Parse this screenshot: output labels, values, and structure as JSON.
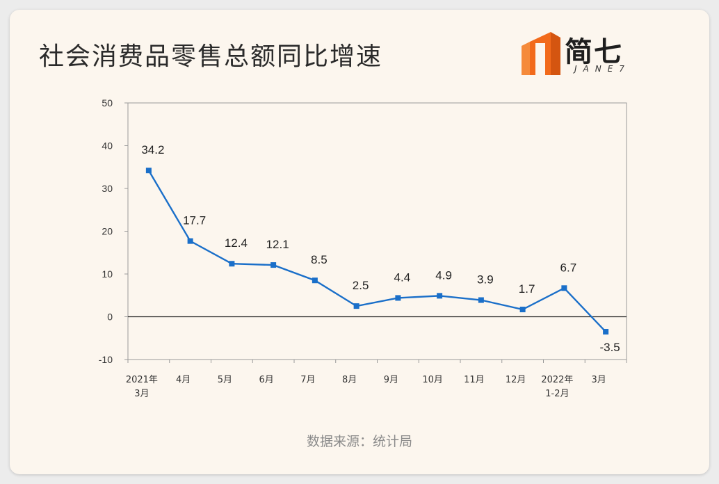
{
  "title": "社会消费品零售总额同比增速",
  "logo": {
    "text": "简七",
    "sub": "JANE7",
    "color": "#f26a1b"
  },
  "source": "数据来源：统计局",
  "chart_data": {
    "type": "line",
    "title": "",
    "xlabel": "",
    "ylabel": "",
    "ylim": [
      -10,
      50
    ],
    "yticks": [
      50,
      40,
      30,
      20,
      10,
      0,
      -10
    ],
    "grid": false,
    "categories": [
      [
        "2021年",
        "3月"
      ],
      [
        "4月"
      ],
      [
        "5月"
      ],
      [
        "6月"
      ],
      [
        "7月"
      ],
      [
        "8月"
      ],
      [
        "9月"
      ],
      [
        "10月"
      ],
      [
        "11月"
      ],
      [
        "12月"
      ],
      [
        "2022年",
        "1-2月"
      ],
      [
        "3月"
      ]
    ],
    "series": [
      {
        "values": [
          34.2,
          17.7,
          12.4,
          12.1,
          8.5,
          2.5,
          4.4,
          4.9,
          3.9,
          1.7,
          6.7,
          -3.5
        ],
        "labels": [
          "34.2",
          "17.7",
          "12.4",
          "12.1",
          "8.5",
          "2.5",
          "4.4",
          "4.9",
          "3.9",
          "1.7",
          "6.7",
          "-3.5"
        ],
        "color": "#1a6fc9"
      }
    ]
  }
}
